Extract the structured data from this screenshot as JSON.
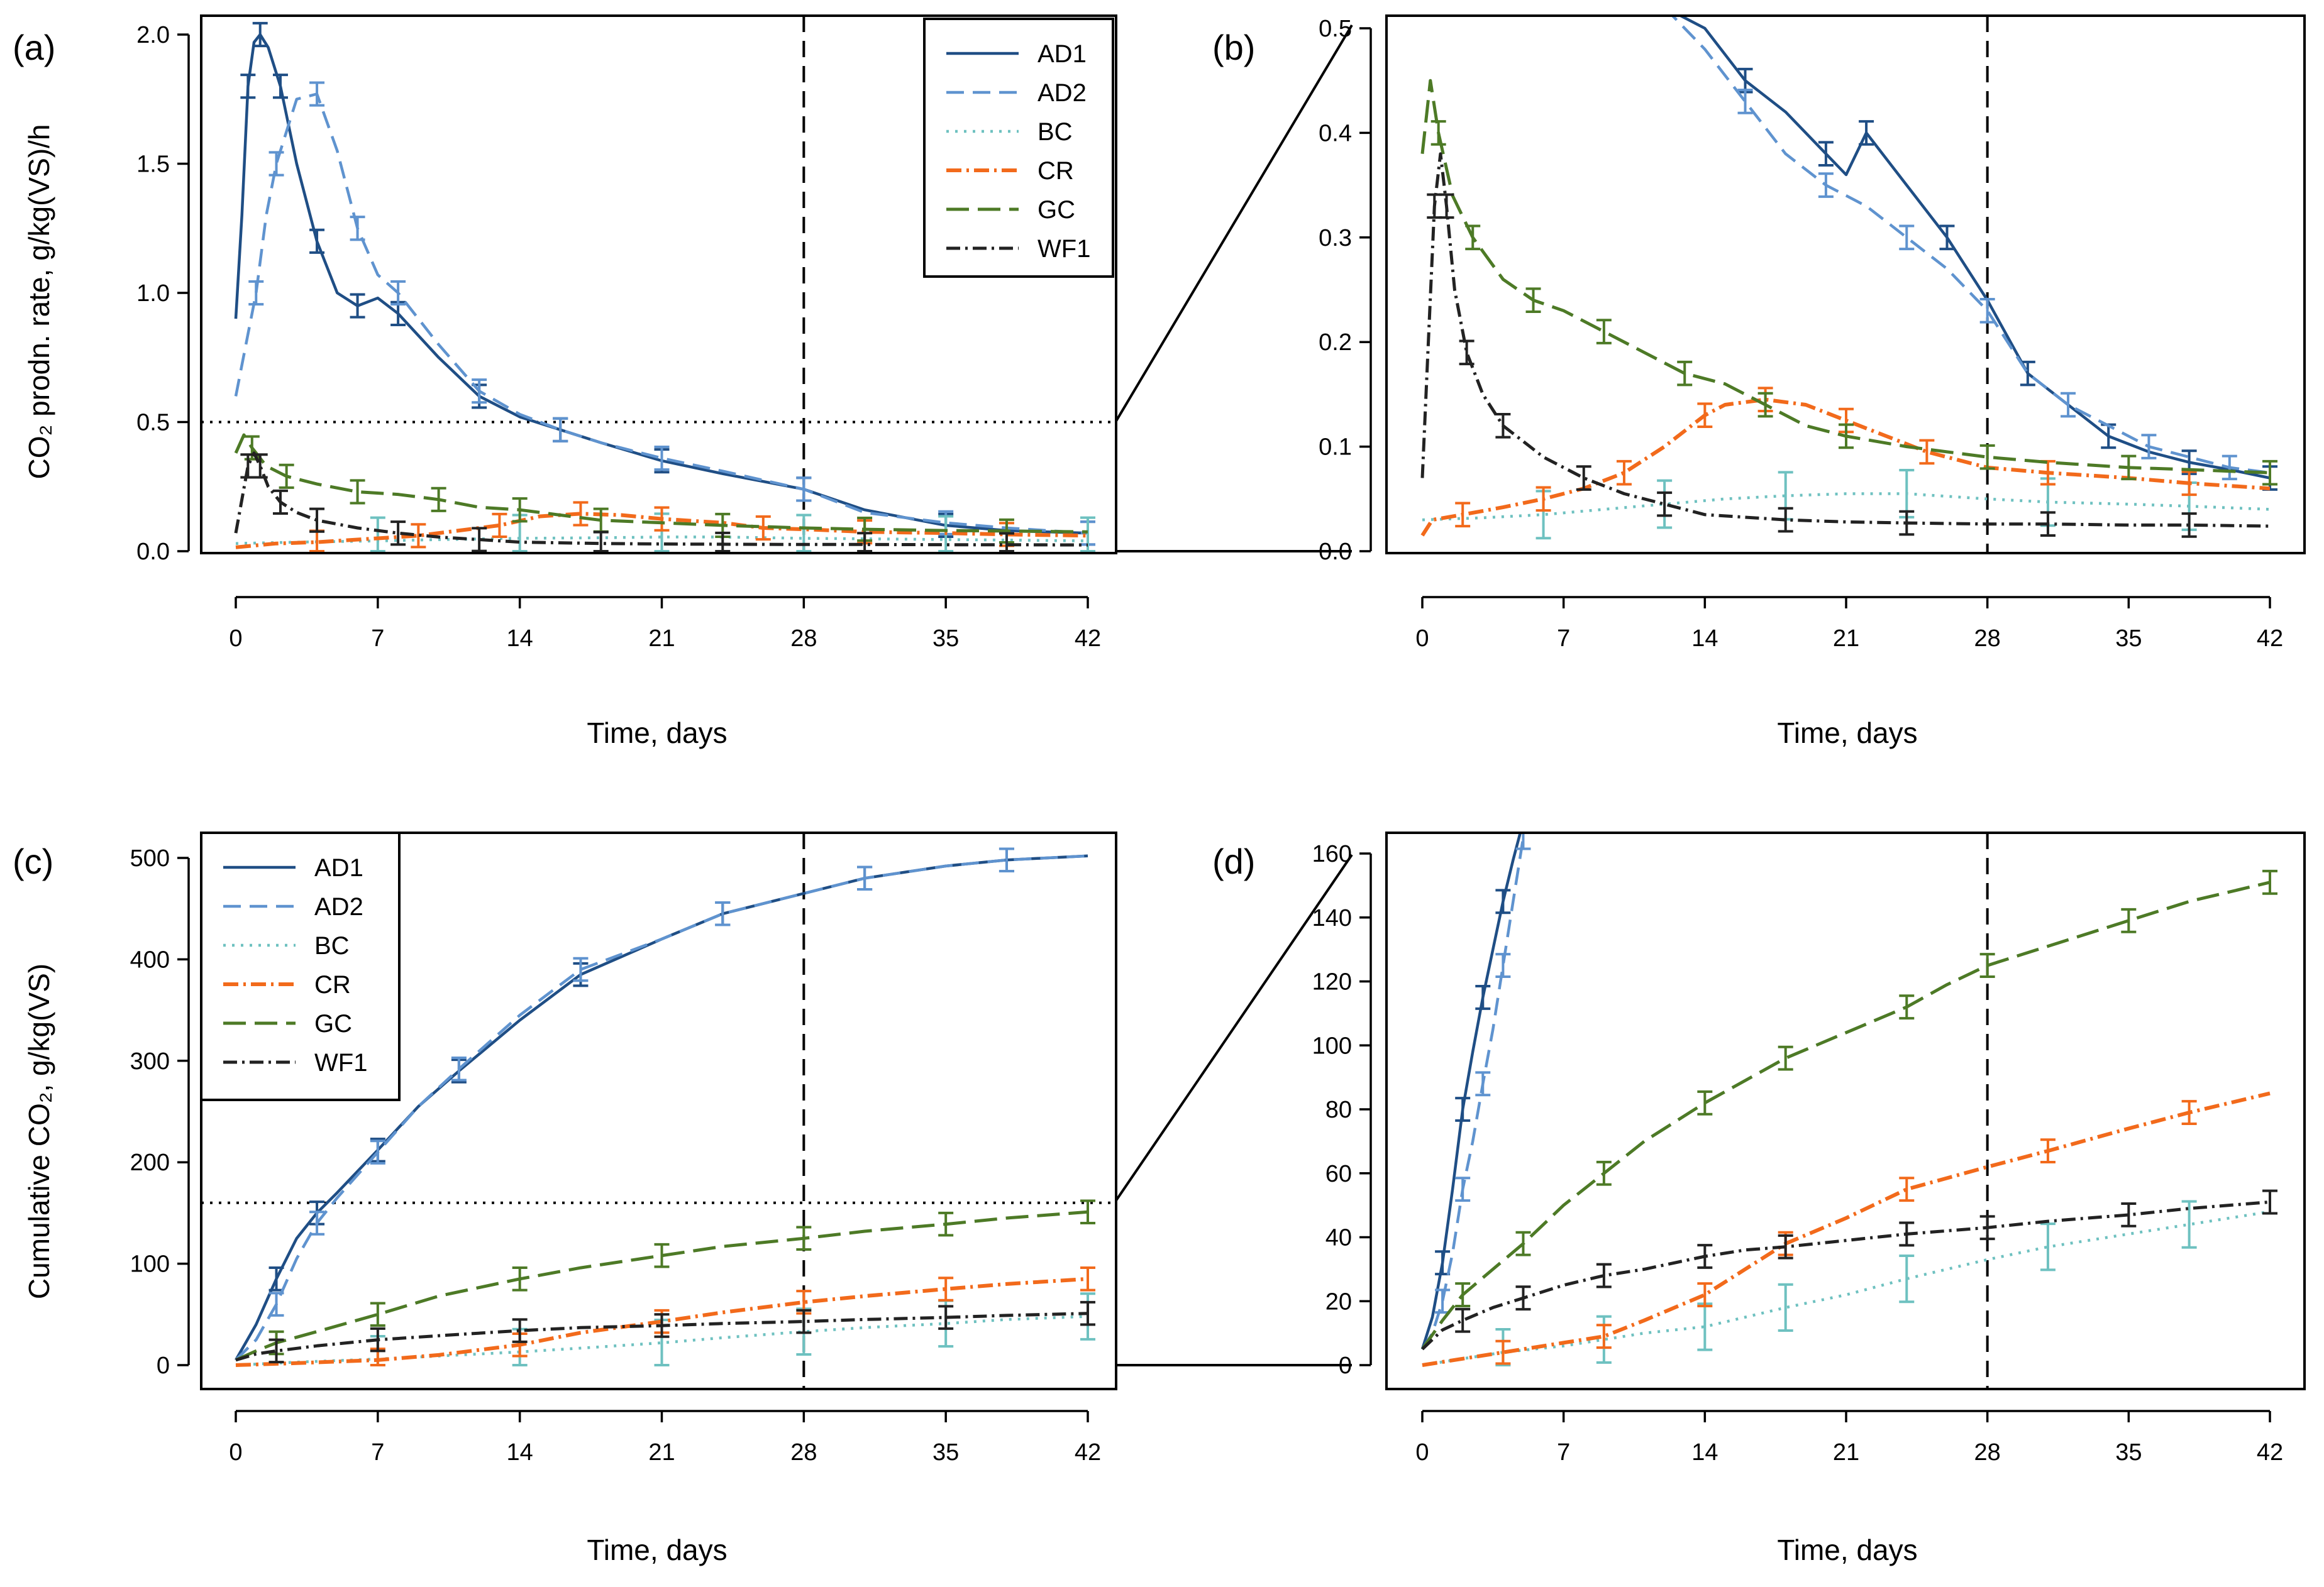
{
  "colors": {
    "AD1": "#1f4e85",
    "AD2": "#5f93cf",
    "BC": "#6ec1c0",
    "CR": "#f26a1b",
    "GC": "#4d7a26",
    "WF1": "#222222"
  },
  "legend": [
    "AD1",
    "AD2",
    "BC",
    "CR",
    "GC",
    "WF1"
  ],
  "chart_data": [
    {
      "type": "line",
      "panel_label": "(a)",
      "xlabel": "Time, days",
      "ylabel": "CO₂ prodn. rate, g/kg(VS)/h",
      "xlim": [
        0,
        42
      ],
      "ylim": [
        0,
        2.0
      ],
      "xticks": [
        0,
        7,
        14,
        21,
        28,
        35,
        42
      ],
      "yticks": [
        0.0,
        0.5,
        1.0,
        1.5,
        2.0
      ],
      "ytick_labels": [
        "0.0",
        "0.5",
        "1.0",
        "1.5",
        "2.0"
      ],
      "vline_day": 28,
      "hline_value": 0.5,
      "legend_position": "top-right",
      "series": [
        {
          "name": "AD1",
          "x": [
            0,
            0.3,
            0.6,
            0.9,
            1.2,
            1.6,
            2.2,
            3,
            4,
            5,
            6,
            7,
            8,
            10,
            12,
            14,
            16,
            18,
            21,
            24,
            28,
            31,
            35,
            38,
            42
          ],
          "y": [
            0.9,
            1.3,
            1.8,
            1.97,
            2.0,
            1.95,
            1.8,
            1.5,
            1.2,
            1.0,
            0.95,
            0.98,
            0.92,
            0.75,
            0.6,
            0.52,
            0.47,
            0.42,
            0.35,
            0.3,
            0.24,
            0.16,
            0.1,
            0.08,
            0.07
          ]
        },
        {
          "name": "AD2",
          "x": [
            0,
            0.5,
            1,
            1.5,
            2,
            3,
            4,
            5,
            6,
            7,
            8,
            10,
            12,
            14,
            16,
            18,
            21,
            24,
            28,
            31,
            35,
            38,
            42
          ],
          "y": [
            0.6,
            0.8,
            1.0,
            1.3,
            1.5,
            1.75,
            1.77,
            1.55,
            1.25,
            1.07,
            1.0,
            0.8,
            0.62,
            0.53,
            0.47,
            0.42,
            0.36,
            0.31,
            0.24,
            0.15,
            0.11,
            0.09,
            0.07
          ]
        },
        {
          "name": "BC",
          "x": [
            0,
            3,
            7,
            10,
            14,
            18,
            21,
            24,
            28,
            31,
            35,
            38,
            42
          ],
          "y": [
            0.03,
            0.035,
            0.04,
            0.045,
            0.05,
            0.052,
            0.055,
            0.055,
            0.05,
            0.048,
            0.045,
            0.043,
            0.04
          ]
        },
        {
          "name": "CR",
          "x": [
            0,
            2,
            4,
            7,
            9,
            11,
            13,
            15,
            17,
            19,
            21,
            24,
            26,
            28,
            31,
            35,
            38,
            42
          ],
          "y": [
            0.015,
            0.03,
            0.035,
            0.05,
            0.06,
            0.08,
            0.1,
            0.135,
            0.145,
            0.14,
            0.125,
            0.11,
            0.09,
            0.085,
            0.075,
            0.07,
            0.065,
            0.06
          ]
        },
        {
          "name": "GC",
          "x": [
            0,
            0.4,
            0.8,
            1.5,
            2.5,
            4,
            6,
            8,
            10,
            12,
            14,
            16,
            18,
            21,
            24,
            28,
            31,
            35,
            38,
            42
          ],
          "y": [
            0.38,
            0.45,
            0.4,
            0.33,
            0.29,
            0.26,
            0.23,
            0.22,
            0.2,
            0.17,
            0.16,
            0.14,
            0.12,
            0.11,
            0.1,
            0.09,
            0.085,
            0.08,
            0.078,
            0.075
          ]
        },
        {
          "name": "WF1",
          "x": [
            0,
            0.3,
            0.6,
            0.9,
            1.2,
            1.6,
            2.2,
            3,
            4,
            6,
            8,
            10,
            12,
            14,
            18,
            21,
            24,
            28,
            31,
            35,
            38,
            42
          ],
          "y": [
            0.07,
            0.2,
            0.33,
            0.38,
            0.33,
            0.25,
            0.19,
            0.15,
            0.12,
            0.09,
            0.07,
            0.055,
            0.045,
            0.035,
            0.03,
            0.028,
            0.027,
            0.026,
            0.026,
            0.025,
            0.025,
            0.024
          ]
        }
      ]
    },
    {
      "type": "line",
      "panel_label": "(b)",
      "xlabel": "Time, days",
      "ylabel": "",
      "xlim": [
        0,
        42
      ],
      "ylim": [
        0,
        0.5
      ],
      "xticks": [
        0,
        7,
        14,
        21,
        28,
        35,
        42
      ],
      "yticks": [
        0.0,
        0.1,
        0.2,
        0.3,
        0.4,
        0.5
      ],
      "ytick_labels": [
        "0.0",
        "0.1",
        "0.2",
        "0.3",
        "0.4",
        "0.5"
      ],
      "vline_day": 28,
      "zoom_of": "(a) below 0.5",
      "series": [
        {
          "name": "AD1",
          "x": [
            12,
            14,
            16,
            18,
            20,
            21,
            22,
            24,
            26,
            28,
            30,
            32,
            34,
            36,
            38,
            40,
            42
          ],
          "y": [
            0.52,
            0.5,
            0.45,
            0.42,
            0.38,
            0.36,
            0.4,
            0.35,
            0.3,
            0.24,
            0.17,
            0.14,
            0.11,
            0.095,
            0.085,
            0.078,
            0.07
          ]
        },
        {
          "name": "AD2",
          "x": [
            12,
            14,
            16,
            18,
            20,
            22,
            24,
            26,
            28,
            30,
            32,
            34,
            36,
            38,
            40,
            42
          ],
          "y": [
            0.52,
            0.48,
            0.43,
            0.38,
            0.35,
            0.33,
            0.3,
            0.27,
            0.23,
            0.17,
            0.14,
            0.12,
            0.1,
            0.09,
            0.08,
            0.075
          ]
        },
        {
          "name": "BC",
          "x": [
            0,
            3,
            6,
            9,
            12,
            15,
            18,
            21,
            24,
            28,
            31,
            35,
            38,
            42
          ],
          "y": [
            0.03,
            0.032,
            0.035,
            0.04,
            0.045,
            0.05,
            0.053,
            0.055,
            0.055,
            0.05,
            0.047,
            0.045,
            0.043,
            0.04
          ]
        },
        {
          "name": "CR",
          "x": [
            0,
            0.5,
            2,
            4,
            6,
            8,
            10,
            12,
            14,
            15,
            17,
            19,
            21,
            23,
            25,
            28,
            31,
            35,
            38,
            42
          ],
          "y": [
            0.015,
            0.03,
            0.035,
            0.042,
            0.05,
            0.06,
            0.075,
            0.1,
            0.13,
            0.14,
            0.145,
            0.14,
            0.125,
            0.11,
            0.095,
            0.08,
            0.075,
            0.07,
            0.065,
            0.06
          ]
        },
        {
          "name": "GC",
          "x": [
            0,
            0.4,
            0.8,
            1.5,
            2.5,
            4,
            5.5,
            7,
            9,
            11,
            13,
            15,
            17,
            19,
            21,
            24,
            28,
            31,
            35,
            38,
            42
          ],
          "y": [
            0.38,
            0.45,
            0.4,
            0.34,
            0.3,
            0.26,
            0.24,
            0.23,
            0.21,
            0.19,
            0.17,
            0.16,
            0.14,
            0.12,
            0.11,
            0.1,
            0.09,
            0.085,
            0.08,
            0.078,
            0.075
          ]
        },
        {
          "name": "WF1",
          "x": [
            0,
            0.3,
            0.6,
            0.9,
            1.2,
            1.6,
            2.2,
            3,
            4,
            6,
            8,
            10,
            12,
            14,
            18,
            21,
            24,
            28,
            31,
            35,
            38,
            42
          ],
          "y": [
            0.07,
            0.2,
            0.33,
            0.38,
            0.33,
            0.25,
            0.19,
            0.15,
            0.12,
            0.09,
            0.07,
            0.055,
            0.045,
            0.035,
            0.03,
            0.028,
            0.027,
            0.026,
            0.026,
            0.025,
            0.025,
            0.024
          ]
        }
      ]
    },
    {
      "type": "line",
      "panel_label": "(c)",
      "xlabel": "Time, days",
      "ylabel": "Cumulative CO₂, g/kg(VS)",
      "xlim": [
        0,
        42
      ],
      "ylim": [
        0,
        500
      ],
      "xticks": [
        0,
        7,
        14,
        21,
        28,
        35,
        42
      ],
      "yticks": [
        0,
        100,
        200,
        300,
        400,
        500
      ],
      "ytick_labels": [
        "0",
        "100",
        "200",
        "300",
        "400",
        "500"
      ],
      "vline_day": 28,
      "hline_value": 160,
      "legend_position": "top-left",
      "series": [
        {
          "name": "AD1",
          "x": [
            0,
            1,
            2,
            3,
            4,
            5,
            7,
            9,
            11,
            14,
            17,
            21,
            24,
            28,
            31,
            35,
            38,
            42
          ],
          "y": [
            5,
            40,
            85,
            125,
            150,
            170,
            212,
            255,
            290,
            340,
            385,
            420,
            445,
            465,
            480,
            492,
            498,
            502
          ]
        },
        {
          "name": "AD2",
          "x": [
            0,
            1,
            2,
            3,
            4,
            5,
            7,
            9,
            11,
            14,
            17,
            21,
            24,
            28,
            31,
            35,
            38,
            42
          ],
          "y": [
            5,
            25,
            60,
            105,
            140,
            165,
            210,
            255,
            292,
            345,
            390,
            420,
            445,
            465,
            480,
            492,
            498,
            502
          ]
        },
        {
          "name": "BC",
          "x": [
            0,
            3,
            7,
            10,
            14,
            18,
            21,
            24,
            28,
            31,
            35,
            38,
            42
          ],
          "y": [
            0,
            3,
            6,
            9,
            13,
            18,
            22,
            27,
            33,
            37,
            41,
            45,
            48
          ]
        },
        {
          "name": "CR",
          "x": [
            0,
            3,
            7,
            10,
            14,
            17,
            21,
            24,
            28,
            31,
            35,
            38,
            42
          ],
          "y": [
            0,
            2,
            5,
            10,
            20,
            32,
            43,
            52,
            62,
            68,
            75,
            80,
            85
          ]
        },
        {
          "name": "GC",
          "x": [
            0,
            1,
            2,
            4,
            7,
            10,
            14,
            17,
            21,
            24,
            28,
            31,
            35,
            38,
            42
          ],
          "y": [
            5,
            14,
            22,
            33,
            50,
            68,
            85,
            96,
            108,
            117,
            125,
            132,
            139,
            145,
            151
          ]
        },
        {
          "name": "WF1",
          "x": [
            0,
            1,
            2,
            4,
            7,
            10,
            14,
            17,
            21,
            24,
            28,
            31,
            35,
            38,
            42
          ],
          "y": [
            5,
            11,
            14,
            19,
            25,
            29,
            34,
            37,
            39,
            41,
            43,
            45,
            47,
            49,
            51
          ]
        }
      ]
    },
    {
      "type": "line",
      "panel_label": "(d)",
      "xlabel": "Time, days",
      "ylabel": "",
      "xlim": [
        0,
        42
      ],
      "ylim": [
        0,
        160
      ],
      "xticks": [
        0,
        7,
        14,
        21,
        28,
        35,
        42
      ],
      "yticks": [
        0,
        20,
        40,
        60,
        80,
        100,
        120,
        140,
        160
      ],
      "ytick_labels": [
        "0",
        "20",
        "40",
        "60",
        "80",
        "100",
        "120",
        "140",
        "160"
      ],
      "vline_day": 28,
      "zoom_of": "(c) below 160",
      "series": [
        {
          "name": "AD1",
          "x": [
            0,
            0.5,
            1,
            1.5,
            2,
            2.5,
            3,
            3.5,
            4,
            4.5,
            5
          ],
          "y": [
            5,
            15,
            32,
            55,
            80,
            98,
            115,
            130,
            145,
            158,
            170
          ]
        },
        {
          "name": "AD2",
          "x": [
            0,
            0.5,
            1,
            1.5,
            2,
            2.5,
            3,
            3.5,
            4,
            4.5,
            5
          ],
          "y": [
            5,
            10,
            20,
            35,
            55,
            70,
            88,
            105,
            125,
            145,
            165
          ]
        },
        {
          "name": "BC",
          "x": [
            0,
            2,
            4,
            7,
            9,
            11,
            14,
            16,
            18,
            21,
            24,
            28,
            31,
            35,
            38,
            42
          ],
          "y": [
            0,
            2,
            4,
            6,
            8,
            10,
            12,
            15,
            18,
            22,
            27,
            33,
            37,
            41,
            44,
            48
          ]
        },
        {
          "name": "CR",
          "x": [
            0,
            2,
            4,
            7,
            9,
            11,
            14,
            16,
            18,
            21,
            24,
            28,
            31,
            35,
            38,
            42
          ],
          "y": [
            0,
            2,
            4,
            7,
            9,
            14,
            22,
            30,
            38,
            46,
            55,
            62,
            67,
            74,
            79,
            85
          ]
        },
        {
          "name": "GC",
          "x": [
            0,
            1,
            2,
            3.5,
            5,
            7,
            9,
            11,
            14,
            16,
            18,
            21,
            24,
            26,
            28,
            31,
            35,
            38,
            42
          ],
          "y": [
            5,
            14,
            22,
            30,
            38,
            50,
            60,
            70,
            82,
            89,
            96,
            104,
            112,
            119,
            125,
            131,
            139,
            145,
            151
          ]
        },
        {
          "name": "WF1",
          "x": [
            0,
            1,
            2,
            3.5,
            5,
            7,
            9,
            11,
            14,
            16,
            18,
            21,
            24,
            26,
            28,
            31,
            35,
            38,
            42
          ],
          "y": [
            5,
            11,
            14,
            18,
            21,
            25,
            28,
            30,
            34,
            36,
            37,
            39,
            41,
            42,
            43,
            45,
            47,
            49,
            51
          ]
        }
      ]
    }
  ]
}
